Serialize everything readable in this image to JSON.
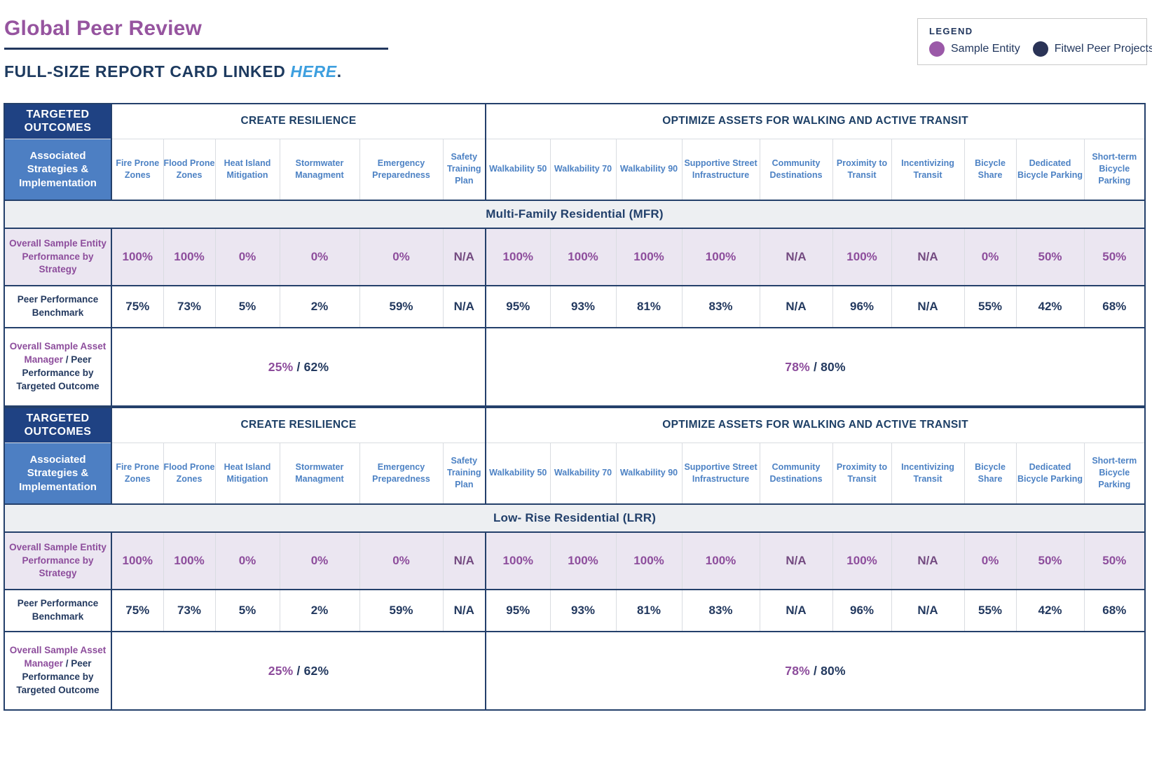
{
  "page": {
    "title": "Global Peer Review",
    "subtitle_prefix": "FULL-SIZE REPORT CARD LINKED ",
    "subtitle_link": "HERE",
    "subtitle_suffix": "."
  },
  "legend": {
    "title": "LEGEND",
    "items": [
      {
        "label": "Sample Entity",
        "color": "#9b59a8"
      },
      {
        "label": "Fitwel Peer Projects",
        "color": "#2a3356"
      }
    ]
  },
  "colors": {
    "title_purple": "#96549f",
    "value_purple": "#8d4d9c",
    "navy": "#23395f",
    "link_blue": "#3d9fdf",
    "header_dark_blue": "#1f4283",
    "header_medium_blue": "#4d7fc3",
    "column_header_blue": "#4d82c4",
    "lavender_row": "#ebe6f1",
    "band_gray": "#edeff2"
  },
  "table_template": {
    "corner_title": "TARGETED OUTCOMES",
    "corner_subtitle": "Associated Strategies & Implementation",
    "sections": [
      {
        "title": "CREATE RESILIENCE",
        "columns": [
          "Fire Prone Zones",
          "Flood Prone Zones",
          "Heat Island Mitigation",
          "Stormwater Managment",
          "Emergency Preparedness",
          "Safety Training Plan"
        ]
      },
      {
        "title": "OPTIMIZE ASSETS FOR WALKING AND ACTIVE TRANSIT",
        "columns": [
          "Walkability 50",
          "Walkability 70",
          "Walkability 90",
          "Supportive Street Infrastructure",
          "Community Destinations",
          "Proximity to Transit",
          "Incentivizing Transit",
          "Bicycle Share",
          "Dedicated Bicycle Parking",
          "Short-term Bicycle Parking"
        ]
      }
    ],
    "row_labels": {
      "sample_entity": "Overall Sample Entity Performance by Strategy",
      "peer_benchmark": "Peer Performance Benchmark",
      "overall_purple_part": "Overall Sample Asset Manager",
      "overall_navy_part": " / Peer Performance by Targeted Outcome"
    }
  },
  "tables": [
    {
      "band": "Multi-Family Residential (MFR)",
      "sample_entity_values": [
        "100%",
        "100%",
        "0%",
        "0%",
        "0%",
        "N/A",
        "100%",
        "100%",
        "100%",
        "100%",
        "N/A",
        "100%",
        "N/A",
        "0%",
        "50%",
        "50%"
      ],
      "peer_benchmark_values": [
        "75%",
        "73%",
        "5%",
        "2%",
        "59%",
        "N/A",
        "95%",
        "93%",
        "81%",
        "83%",
        "N/A",
        "96%",
        "N/A",
        "55%",
        "42%",
        "68%"
      ],
      "overall_by_outcome": [
        {
          "sample": "25%",
          "separator": " / ",
          "peer": "62%"
        },
        {
          "sample": "78%",
          "separator": " / ",
          "peer": "80%"
        }
      ]
    },
    {
      "band": "Low- Rise Residential (LRR)",
      "sample_entity_values": [
        "100%",
        "100%",
        "0%",
        "0%",
        "0%",
        "N/A",
        "100%",
        "100%",
        "100%",
        "100%",
        "N/A",
        "100%",
        "N/A",
        "0%",
        "50%",
        "50%"
      ],
      "peer_benchmark_values": [
        "75%",
        "73%",
        "5%",
        "2%",
        "59%",
        "N/A",
        "95%",
        "93%",
        "81%",
        "83%",
        "N/A",
        "96%",
        "N/A",
        "55%",
        "42%",
        "68%"
      ],
      "overall_by_outcome": [
        {
          "sample": "25%",
          "separator": " / ",
          "peer": "62%"
        },
        {
          "sample": "78%",
          "separator": " / ",
          "peer": "80%"
        }
      ]
    }
  ]
}
